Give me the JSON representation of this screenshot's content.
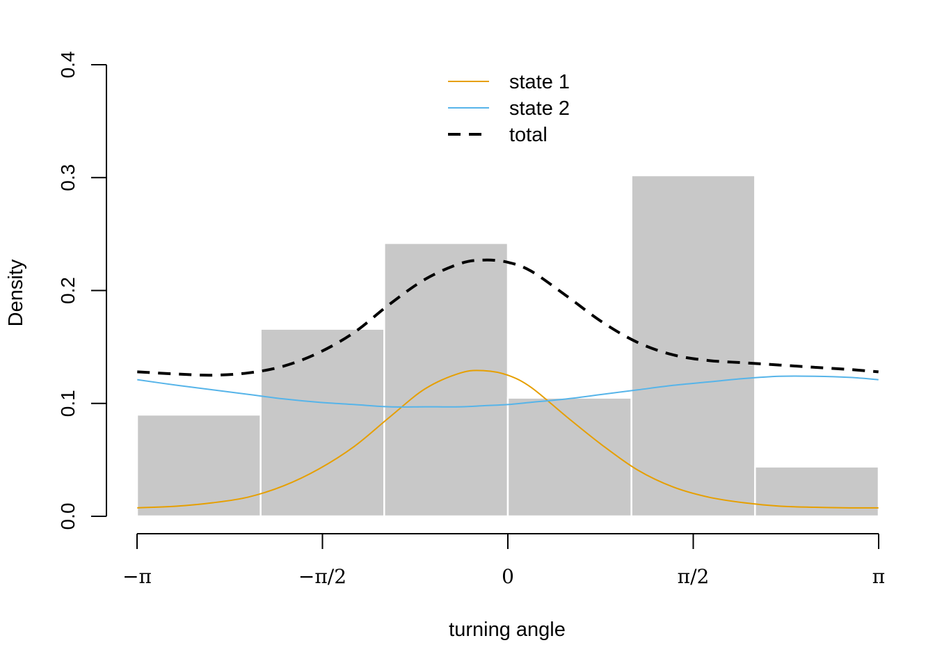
{
  "chart_data": {
    "type": "histogram",
    "xlabel": "turning angle",
    "ylabel": "Density",
    "xlim": [
      -3.14159,
      3.14159
    ],
    "ylim": [
      0,
      0.4
    ],
    "x_ticks": [
      {
        "value": -3.14159,
        "label": "−π"
      },
      {
        "value": -1.5708,
        "label": "−π/2"
      },
      {
        "value": 0,
        "label": "0"
      },
      {
        "value": 1.5708,
        "label": "π/2"
      },
      {
        "value": 3.14159,
        "label": "π"
      }
    ],
    "y_ticks": [
      {
        "value": 0,
        "label": "0.0"
      },
      {
        "value": 0.1,
        "label": "0.1"
      },
      {
        "value": 0.2,
        "label": "0.2"
      },
      {
        "value": 0.3,
        "label": "0.3"
      },
      {
        "value": 0.4,
        "label": "0.4"
      }
    ],
    "bins": [
      {
        "start": -3.14159,
        "end": -2.0944,
        "density": 0.09
      },
      {
        "start": -2.0944,
        "end": -1.0472,
        "density": 0.166
      },
      {
        "start": -1.0472,
        "end": 0,
        "density": 0.242
      },
      {
        "start": 0,
        "end": 1.0472,
        "density": 0.105
      },
      {
        "start": 1.0472,
        "end": 2.0944,
        "density": 0.302
      },
      {
        "start": 2.0944,
        "end": 3.14159,
        "density": 0.044
      }
    ],
    "series": [
      {
        "name": "state 1",
        "color": "#E69F00",
        "style": "solid",
        "x": [
          -3.14,
          -2.8,
          -2.5,
          -2.2,
          -1.9,
          -1.6,
          -1.3,
          -1.0,
          -0.7,
          -0.4,
          -0.2,
          0.0,
          0.2,
          0.5,
          0.8,
          1.1,
          1.4,
          1.7,
          2.0,
          2.3,
          2.6,
          2.9,
          3.14
        ],
        "y": [
          0.0075,
          0.009,
          0.012,
          0.017,
          0.027,
          0.042,
          0.062,
          0.088,
          0.113,
          0.127,
          0.129,
          0.125,
          0.114,
          0.088,
          0.063,
          0.041,
          0.026,
          0.017,
          0.012,
          0.009,
          0.008,
          0.0075,
          0.0075
        ]
      },
      {
        "name": "state 2",
        "color": "#56B4E9",
        "style": "solid",
        "x": [
          -3.14,
          -2.8,
          -2.5,
          -2.2,
          -1.9,
          -1.6,
          -1.3,
          -1.0,
          -0.7,
          -0.4,
          -0.2,
          0.0,
          0.2,
          0.5,
          0.8,
          1.1,
          1.4,
          1.7,
          2.0,
          2.3,
          2.6,
          2.9,
          3.14
        ],
        "y": [
          0.121,
          0.116,
          0.112,
          0.108,
          0.104,
          0.101,
          0.099,
          0.097,
          0.097,
          0.097,
          0.098,
          0.099,
          0.101,
          0.104,
          0.108,
          0.112,
          0.116,
          0.119,
          0.122,
          0.124,
          0.124,
          0.123,
          0.121
        ]
      },
      {
        "name": "total",
        "color": "#000000",
        "style": "dashed",
        "x": [
          -3.14,
          -2.8,
          -2.5,
          -2.2,
          -1.9,
          -1.6,
          -1.3,
          -1.0,
          -0.7,
          -0.4,
          -0.2,
          0.0,
          0.2,
          0.5,
          0.8,
          1.1,
          1.4,
          1.7,
          2.0,
          2.3,
          2.6,
          2.9,
          3.14
        ],
        "y": [
          0.128,
          0.126,
          0.125,
          0.127,
          0.133,
          0.145,
          0.163,
          0.188,
          0.21,
          0.224,
          0.227,
          0.225,
          0.217,
          0.195,
          0.172,
          0.154,
          0.143,
          0.138,
          0.136,
          0.134,
          0.132,
          0.13,
          0.128
        ]
      }
    ],
    "bar_color": "#C8C8C8",
    "legend_position": "top-center",
    "grid": false
  }
}
